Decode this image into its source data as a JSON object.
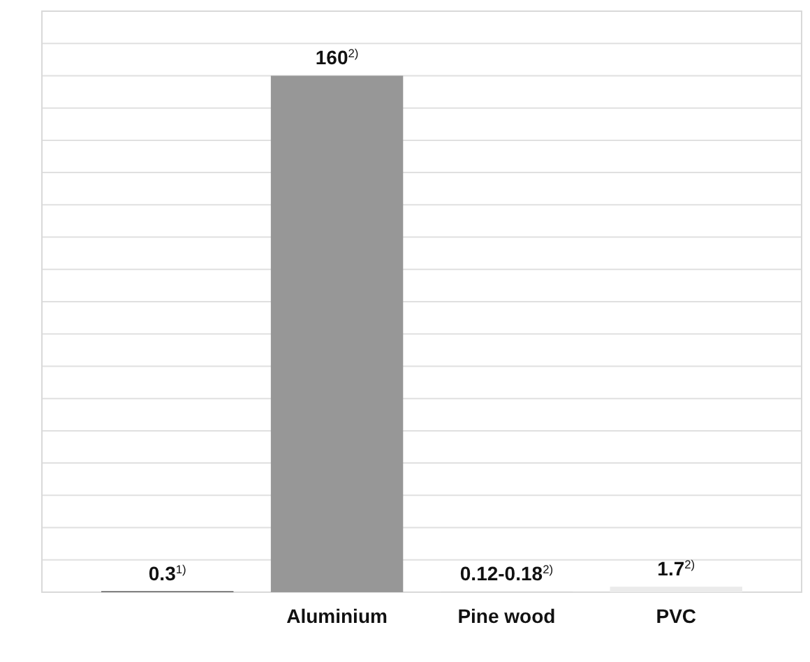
{
  "chart_data": {
    "type": "bar",
    "categories": [
      null,
      "Aluminium",
      "Pine wood",
      "PVC"
    ],
    "values": [
      0.3,
      160,
      0.15,
      1.7
    ],
    "colors": [
      "#555555",
      "#979797",
      "#d3d3d3",
      "#ebebeb"
    ],
    "value_labels": [
      "0.3$^{1)}$",
      "160$^{2)}$",
      "0.12-0.18$^{2)}$",
      "1.7$^{2)}$"
    ],
    "ylim": [
      0,
      180
    ],
    "yticks": [
      {
        "value": 0,
        "label": null
      },
      {
        "value": 10,
        "label": null
      },
      {
        "value": 20,
        "label": null
      },
      {
        "value": 30,
        "label": null
      },
      {
        "value": 40,
        "label": null
      },
      {
        "value": 50,
        "label": null
      },
      {
        "value": 60,
        "label": null
      },
      {
        "value": 70,
        "label": null
      },
      {
        "value": 80,
        "label": null
      },
      {
        "value": 90,
        "label": null
      },
      {
        "value": 100,
        "label": null
      },
      {
        "value": 110,
        "label": null
      },
      {
        "value": 120,
        "label": null
      },
      {
        "value": 130,
        "label": null
      },
      {
        "value": 140,
        "label": null
      },
      {
        "value": 150,
        "label": null
      },
      {
        "value": 160,
        "label": null
      },
      {
        "value": 170,
        "label": null
      },
      {
        "value": 180,
        "label": null
      }
    ],
    "tick_labels": "x",
    "grid": "y"
  }
}
